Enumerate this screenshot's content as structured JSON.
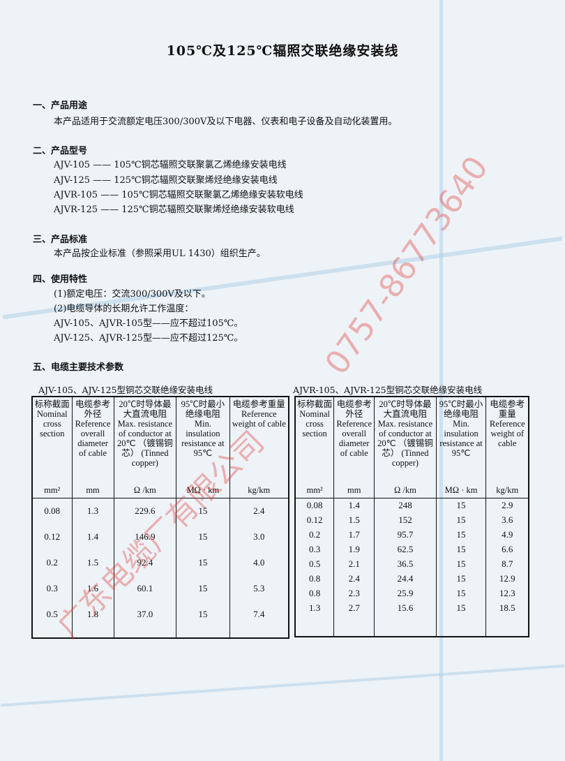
{
  "title": "105℃及125℃辐照交联绝缘安装线",
  "sections": [
    {
      "heading": "一、产品用途",
      "lines": [
        "本产品适用于交流额定电压300/300V及以下电器、仪表和电子设备及自动化装置用。"
      ]
    },
    {
      "heading": "二、产品型号",
      "lines": [
        "AJV-105 —— 105℃铜芯辐照交联聚氯乙烯绝缘安装电线",
        "AJV-125 —— 125℃铜芯辐照交联聚烯烃绝缘安装电线",
        "AJVR-105 —— 105℃铜芯辐照交联聚氯乙烯绝缘安装软电线",
        "AJVR-125 —— 125℃铜芯辐照交联聚烯烃绝缘安装软电线"
      ]
    },
    {
      "heading": "三、产品标准",
      "lines": [
        "本产品按企业标准（参照采用UL 1430）组织生产。"
      ]
    },
    {
      "heading": "四、使用特性",
      "lines": [
        "(1)额定电压：交流300/300V及以下。",
        "(2)电缆导体的长期允许工作温度：",
        "AJV-105、AJVR-105型——应不超过105℃。",
        "AJV-125、AJVR-125型——应不超过125℃。"
      ]
    },
    {
      "heading": "五、电缆主要技术参数",
      "lines": []
    }
  ],
  "headers": [
    {
      "cn": "标称截面",
      "en": "Nominal cross section",
      "unit": "mm²"
    },
    {
      "cn": "电缆参考外径",
      "en": "Reference overall diameter of cable",
      "unit": "mm"
    },
    {
      "cn": "20℃时导体最大直流电阻",
      "en": "Max. resistance of conductor at 20℃ （镀锡铜芯） (Tinned copper)",
      "unit": "Ω /km"
    },
    {
      "cn": "95℃时最小绝缘电阻",
      "en": "Min. insulation resistance at 95℃",
      "unit": "MΩ · km"
    },
    {
      "cn": "电缆参考重量",
      "en": "Reference weight of cable",
      "unit": "kg/km"
    }
  ],
  "tables": [
    {
      "caption": "AJV-105、AJV-125型铜芯交联绝缘安装电线",
      "rows": [
        [
          "0.08",
          "1.3",
          "229.6",
          "15",
          "2.4"
        ],
        [
          "0.12",
          "1.4",
          "146.9",
          "15",
          "3.0"
        ],
        [
          "0.2",
          "1.5",
          "92.4",
          "15",
          "4.0"
        ],
        [
          "0.3",
          "1.6",
          "60.1",
          "15",
          "5.3"
        ],
        [
          "0.5",
          "1.8",
          "37.0",
          "15",
          "7.4"
        ]
      ]
    },
    {
      "caption": "AJVR-105、AJVR-125型铜芯交联绝缘安装电线",
      "rows": [
        [
          "0.08",
          "1.4",
          "248",
          "15",
          "2.9"
        ],
        [
          "0.12",
          "1.5",
          "152",
          "15",
          "3.6"
        ],
        [
          "0.2",
          "1.7",
          "95.7",
          "15",
          "4.9"
        ],
        [
          "0.3",
          "1.9",
          "62.5",
          "15",
          "6.6"
        ],
        [
          "0.5",
          "2.1",
          "36.5",
          "15",
          "8.7"
        ],
        [
          "0.8",
          "2.4",
          "24.4",
          "15",
          "12.9"
        ],
        [
          "0.8",
          "2.3",
          "25.9",
          "15",
          "12.3"
        ],
        [
          "1.3",
          "2.7",
          "15.6",
          "15",
          "18.5"
        ]
      ]
    }
  ],
  "watermark": {
    "phone": "0757-86773640",
    "company": "广东电缆厂有限公司",
    "color": "#e0322d"
  }
}
